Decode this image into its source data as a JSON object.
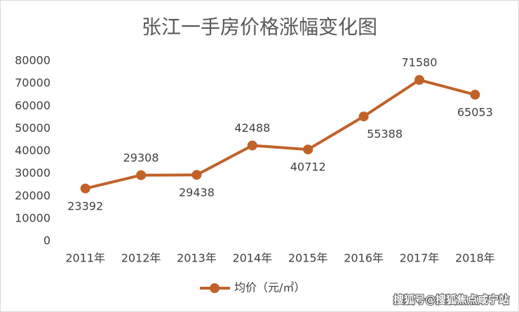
{
  "chart_data": {
    "type": "line",
    "title": "张江一手房价格涨幅变化图",
    "categories": [
      "2011年",
      "2012年",
      "2013年",
      "2014年",
      "2015年",
      "2016年",
      "2017年",
      "2018年"
    ],
    "series": [
      {
        "name": "均价（元/㎡）",
        "color": "#c0622a",
        "values": [
          23392,
          29308,
          29438,
          42488,
          40712,
          55388,
          71580,
          65053
        ]
      }
    ],
    "ylim": [
      0,
      80000
    ],
    "yticks": [
      0,
      10000,
      20000,
      30000,
      40000,
      50000,
      60000,
      70000,
      80000
    ],
    "grid": false,
    "legend": "bottom",
    "watermark": "搜狐号@搜狐焦点咸宁站"
  }
}
